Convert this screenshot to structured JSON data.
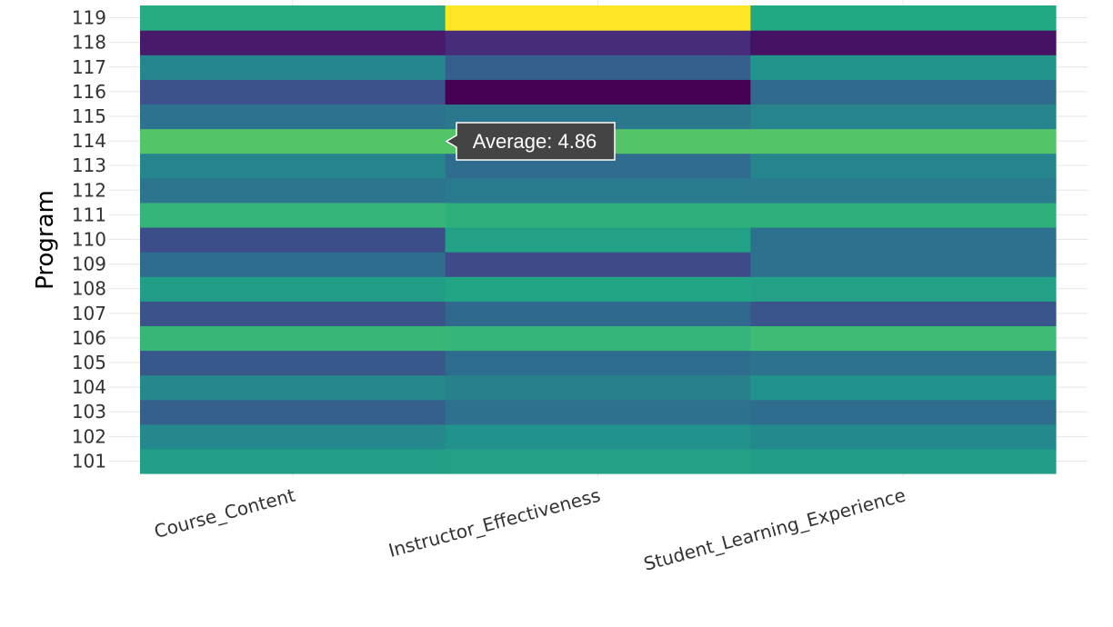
{
  "chart_data": {
    "type": "heatmap",
    "ylabel": "Program",
    "x_categories": [
      "Course_Content",
      "Instructor_Effectiveness",
      "Student_Learning_Experience"
    ],
    "y_categories": [
      "101",
      "102",
      "103",
      "104",
      "105",
      "106",
      "107",
      "108",
      "109",
      "110",
      "111",
      "112",
      "113",
      "114",
      "115",
      "116",
      "117",
      "118",
      "119"
    ],
    "values": [
      [
        4.4,
        4.42,
        4.38
      ],
      [
        4.1,
        4.22,
        4.12
      ],
      [
        3.62,
        3.82,
        3.78
      ],
      [
        4.1,
        4.02,
        4.22
      ],
      [
        3.52,
        3.78,
        3.84
      ],
      [
        4.7,
        4.68,
        4.76
      ],
      [
        3.48,
        3.72,
        3.5
      ],
      [
        4.38,
        4.48,
        4.42
      ],
      [
        3.78,
        3.38,
        3.82
      ],
      [
        3.42,
        4.42,
        3.82
      ],
      [
        4.68,
        4.62,
        4.62
      ],
      [
        3.88,
        3.94,
        3.92
      ],
      [
        4.06,
        3.76,
        4.05
      ],
      [
        4.86,
        4.86,
        4.86
      ],
      [
        3.84,
        3.9,
        4.06
      ],
      [
        3.46,
        2.7,
        3.74
      ],
      [
        4.08,
        3.62,
        4.26
      ],
      [
        2.92,
        3.08,
        2.85
      ],
      [
        4.55,
        5.12,
        4.52
      ]
    ],
    "colorscale": "viridis",
    "zlim": [
      2.7,
      5.12
    ],
    "grid": true,
    "tooltip": {
      "text": "Average: 4.86"
    }
  }
}
